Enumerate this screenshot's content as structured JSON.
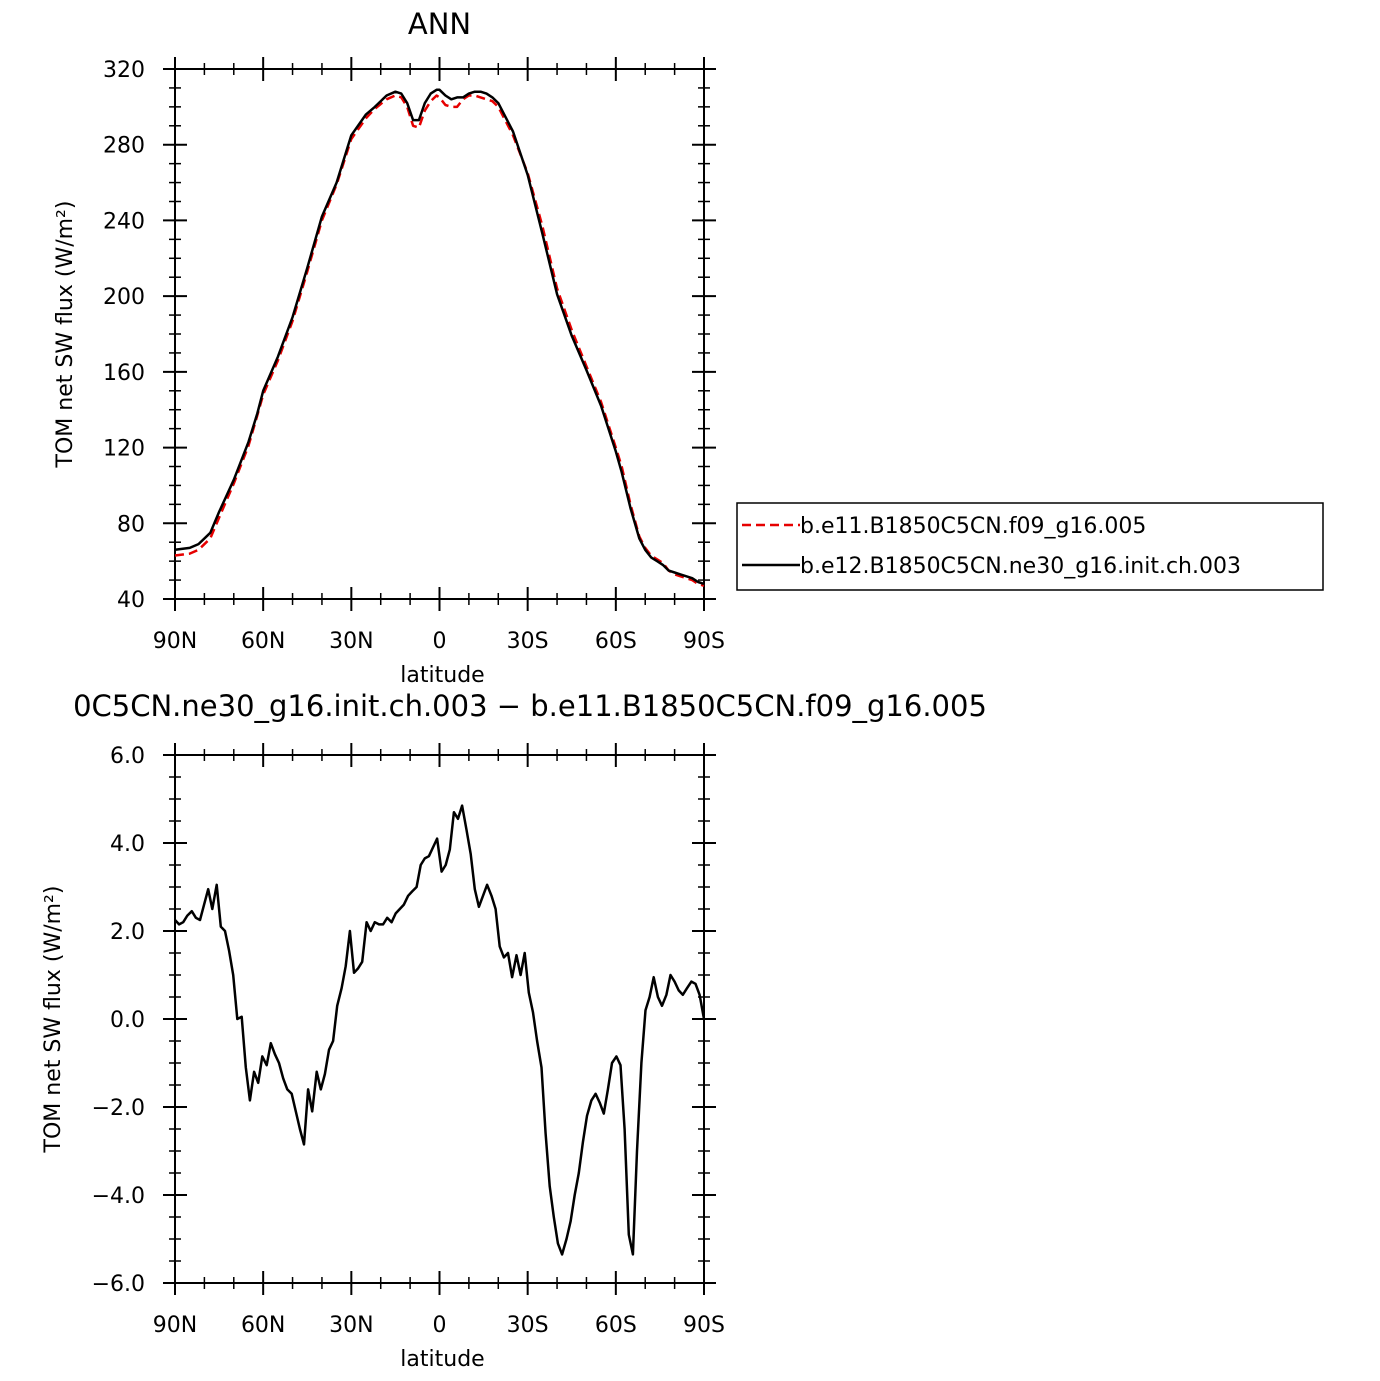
{
  "chart_data": [
    {
      "type": "line",
      "title": "ANN",
      "xlabel": "latitude",
      "ylabel": "TOM net SW flux (W/m²)",
      "xlim": [
        90,
        -90
      ],
      "ylim": [
        40,
        320
      ],
      "xticks": [
        90,
        60,
        30,
        0,
        -30,
        -60,
        -90
      ],
      "xtick_labels": [
        "90N",
        "60N",
        "30N",
        "0",
        "30S",
        "60S",
        "90S"
      ],
      "yticks": [
        40,
        80,
        120,
        160,
        200,
        240,
        280,
        320
      ],
      "ytick_labels": [
        "40",
        "80",
        "120",
        "160",
        "200",
        "240",
        "280",
        "320"
      ],
      "legend_position": "right",
      "series": [
        {
          "name": "b.e11.B1850C5CN.f09_g16.005",
          "color": "#e60000",
          "dash": "dashed",
          "x": [
            90,
            85,
            82,
            78,
            75,
            70,
            65,
            62,
            60,
            55,
            50,
            45,
            40,
            35,
            30,
            25,
            22,
            18,
            15,
            13,
            11,
            9,
            7,
            5,
            3,
            1,
            0,
            -2,
            -4,
            -6,
            -8,
            -10,
            -12,
            -14,
            -16,
            -18,
            -20,
            -25,
            -30,
            -35,
            -40,
            -45,
            -50,
            -55,
            -60,
            -62,
            -65,
            -68,
            -70,
            -72,
            -74,
            -76,
            -78,
            -80,
            -82,
            -84,
            -86,
            -88,
            -90
          ],
          "y": [
            63,
            64,
            66,
            72,
            83,
            101,
            121,
            137,
            148,
            166,
            187,
            213,
            240,
            259,
            283,
            294,
            299,
            304,
            306,
            305,
            300,
            290,
            289,
            298,
            303,
            306,
            305,
            301,
            300,
            300,
            304,
            306,
            306,
            305,
            304,
            303,
            300,
            285,
            265,
            237,
            204,
            182,
            163,
            144,
            120,
            110,
            90,
            73,
            67,
            63,
            61,
            59,
            55,
            53,
            52,
            51,
            50,
            48,
            47
          ]
        },
        {
          "name": "b.e12.B1850C5CN.ne30_g16.init.ch.003",
          "color": "#000000",
          "dash": "solid",
          "x": [
            90,
            85,
            82,
            78,
            75,
            70,
            65,
            62,
            60,
            55,
            50,
            45,
            40,
            35,
            30,
            25,
            22,
            18,
            15,
            13,
            11,
            9,
            7,
            5,
            3,
            1,
            0,
            -2,
            -4,
            -6,
            -8,
            -10,
            -12,
            -14,
            -16,
            -18,
            -20,
            -25,
            -30,
            -35,
            -40,
            -45,
            -50,
            -55,
            -60,
            -62,
            -65,
            -68,
            -70,
            -72,
            -74,
            -76,
            -78,
            -80,
            -82,
            -84,
            -86,
            -88,
            -90
          ],
          "y": [
            66,
            67,
            69,
            75,
            86,
            103,
            123,
            138,
            150,
            168,
            189,
            215,
            242,
            260,
            285,
            296,
            300,
            306,
            308,
            307,
            302,
            293,
            293,
            302,
            307,
            309,
            309,
            306,
            304,
            305,
            305,
            307,
            308,
            308,
            307,
            305,
            302,
            287,
            264,
            233,
            201,
            179,
            161,
            142,
            118,
            107,
            88,
            72,
            66,
            62,
            60,
            58,
            55,
            54,
            53,
            52,
            51,
            49,
            48
          ]
        }
      ]
    },
    {
      "type": "line",
      "title": "0C5CN.ne30_g16.init.ch.003 − b.e11.B1850C5CN.f09_g16.005",
      "xlabel": "latitude",
      "ylabel": "TOM net SW flux (W/m²)",
      "xlim": [
        90,
        -90
      ],
      "ylim": [
        -6,
        6
      ],
      "xticks": [
        90,
        60,
        30,
        0,
        -30,
        -60,
        -90
      ],
      "xtick_labels": [
        "90N",
        "60N",
        "30N",
        "0",
        "30S",
        "60S",
        "90S"
      ],
      "yticks": [
        -6,
        -4,
        -2,
        0,
        2,
        4,
        6
      ],
      "ytick_labels": [
        "−6.0",
        "−4.0",
        "−2.0",
        "0.0",
        "2.0",
        "4.0",
        "6.0"
      ],
      "series": [
        {
          "color": "#000000",
          "dash": "solid",
          "x": [
            90,
            88.6,
            87.2,
            85.8,
            84.3,
            82.9,
            81.5,
            80.1,
            78.7,
            77.3,
            75.8,
            74.4,
            73,
            71.6,
            70.2,
            68.8,
            67.3,
            65.9,
            64.5,
            63.1,
            61.7,
            60.3,
            58.8,
            57.4,
            56,
            54.6,
            53.2,
            51.8,
            50.3,
            48.9,
            47.5,
            46.1,
            44.7,
            43.3,
            41.8,
            40.4,
            39,
            37.6,
            36.2,
            34.8,
            33.3,
            31.9,
            30.5,
            29.1,
            27.7,
            26.3,
            24.8,
            23.4,
            22,
            20.6,
            19.2,
            17.8,
            16.3,
            14.9,
            13.5,
            12.1,
            10.7,
            9.3,
            7.8,
            6.4,
            5,
            3.6,
            2.2,
            0.8,
            -0.7,
            -2.1,
            -3.5,
            -4.9,
            -6.3,
            -7.7,
            -9.2,
            -10.6,
            -12,
            -13.4,
            -14.8,
            -16.2,
            -17.7,
            -19.1,
            -20.5,
            -21.9,
            -23.3,
            -24.7,
            -26.2,
            -27.6,
            -29,
            -30.4,
            -31.8,
            -33.2,
            -34.7,
            -36.1,
            -37.5,
            -38.9,
            -40.3,
            -41.7,
            -43.2,
            -44.6,
            -46,
            -47.4,
            -48.8,
            -50.2,
            -51.7,
            -53.1,
            -54.5,
            -55.9,
            -57.3,
            -58.7,
            -60.2,
            -61.6,
            -63,
            -64.4,
            -65.8,
            -67.2,
            -68.7,
            -70.1,
            -71.5,
            -72.9,
            -74.3,
            -75.7,
            -77.2,
            -78.6,
            -80,
            -81.4,
            -82.8,
            -84.2,
            -85.7,
            -87.1,
            -88.5,
            -90
          ],
          "y": [
            2.25,
            2.15,
            2.2,
            2.35,
            2.45,
            2.3,
            2.25,
            2.6,
            2.95,
            2.5,
            3.05,
            2.1,
            2,
            1.55,
            1.0,
            0.0,
            0.05,
            -1.1,
            -1.85,
            -1.2,
            -1.45,
            -0.85,
            -1.05,
            -0.55,
            -0.8,
            -1.0,
            -1.35,
            -1.6,
            -1.7,
            -2.1,
            -2.5,
            -2.85,
            -1.6,
            -2.1,
            -1.2,
            -1.6,
            -1.25,
            -0.7,
            -0.5,
            0.3,
            0.7,
            1.2,
            2.0,
            1.05,
            1.15,
            1.3,
            2.2,
            2.0,
            2.2,
            2.15,
            2.15,
            2.3,
            2.2,
            2.4,
            2.5,
            2.6,
            2.8,
            2.9,
            3.0,
            3.5,
            3.65,
            3.7,
            3.9,
            4.1,
            3.35,
            3.5,
            3.85,
            4.7,
            4.55,
            4.85,
            4.3,
            3.75,
            2.95,
            2.55,
            2.8,
            3.05,
            2.8,
            2.5,
            1.65,
            1.4,
            1.5,
            0.95,
            1.45,
            1.0,
            1.5,
            0.6,
            0.15,
            -0.5,
            -1.1,
            -2.6,
            -3.8,
            -4.5,
            -5.1,
            -5.35,
            -5.0,
            -4.6,
            -4.0,
            -3.5,
            -2.8,
            -2.2,
            -1.85,
            -1.7,
            -1.9,
            -2.15,
            -1.6,
            -1.0,
            -0.85,
            -1.05,
            -2.5,
            -4.9,
            -5.35,
            -3.0,
            -1.0,
            0.2,
            0.5,
            0.95,
            0.5,
            0.3,
            0.55,
            1.0,
            0.85,
            0.65,
            0.55,
            0.7,
            0.85,
            0.8,
            0.55,
            0.0
          ]
        }
      ]
    }
  ]
}
